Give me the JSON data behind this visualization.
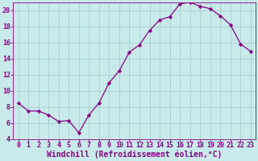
{
  "x": [
    0,
    1,
    2,
    3,
    4,
    5,
    6,
    7,
    8,
    9,
    10,
    11,
    12,
    13,
    14,
    15,
    16,
    17,
    18,
    19,
    20,
    21,
    22,
    23
  ],
  "y": [
    8.5,
    7.5,
    7.5,
    7.0,
    6.2,
    6.3,
    4.8,
    7.0,
    8.5,
    11.0,
    12.5,
    14.8,
    15.7,
    17.5,
    18.8,
    19.2,
    20.8,
    21.0,
    20.5,
    20.2,
    19.3,
    18.2,
    15.8,
    14.9
  ],
  "line_color": "#880088",
  "marker": "D",
  "marker_size": 2.2,
  "bg_color": "#c8eaea",
  "grid_color": "#a8cece",
  "xlabel": "Windchill (Refroidissement éolien,°C)",
  "ylabel": "",
  "xlim_min": -0.5,
  "xlim_max": 23.5,
  "ylim_min": 4,
  "ylim_max": 21,
  "yticks": [
    4,
    6,
    8,
    10,
    12,
    14,
    16,
    18,
    20
  ],
  "xticks": [
    0,
    1,
    2,
    3,
    4,
    5,
    6,
    7,
    8,
    9,
    10,
    11,
    12,
    13,
    14,
    15,
    16,
    17,
    18,
    19,
    20,
    21,
    22,
    23
  ],
  "tick_color": "#880088",
  "label_color": "#880088",
  "tick_fontsize": 6.0,
  "xlabel_fontsize": 7.0
}
